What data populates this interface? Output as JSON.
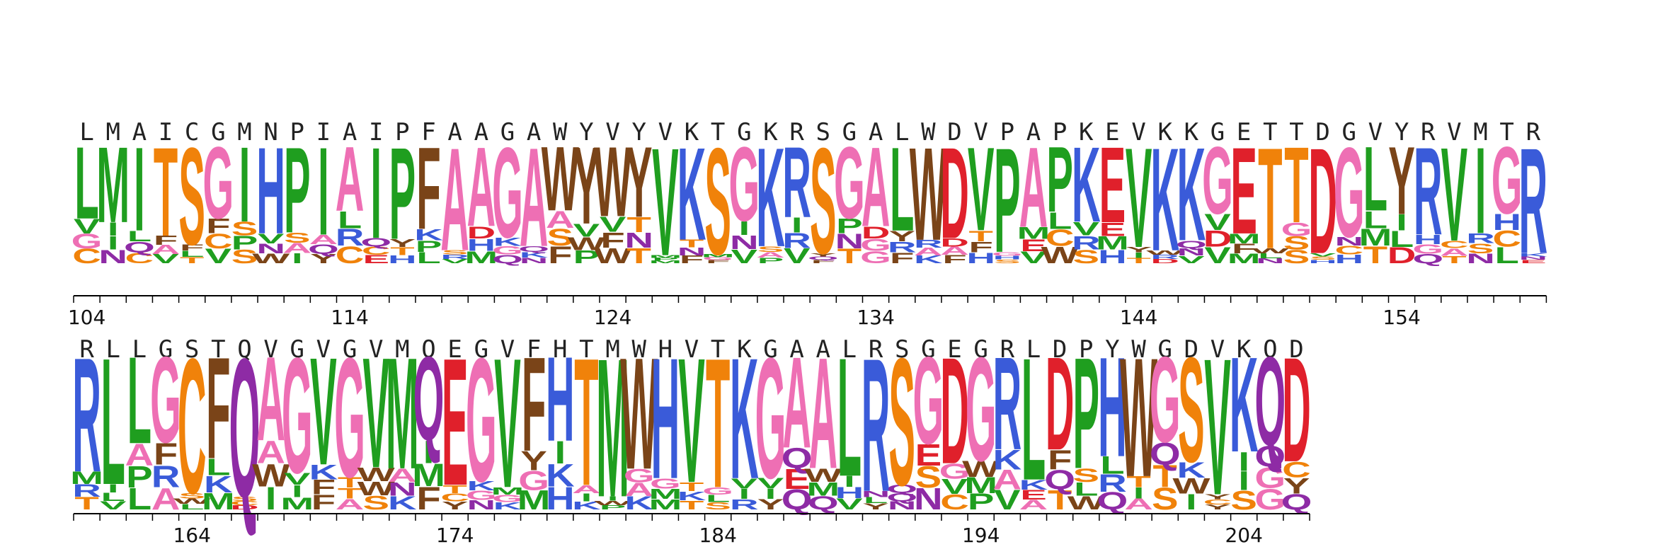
{
  "rows": [
    {
      "consensus": "LMAICGMNPIAIPFAAGAWYVYVKTGKRSGALWDVPAPKEVKKGETTDGVYRVMTR",
      "logo": "LMITSGIHPIAIPFAAGAWYWYVKSGKRSGALWDVPAPKEVKKGETTDGLYRVIGR",
      "start_position": 104,
      "tick_labels": [
        "104",
        "114",
        "124",
        "134",
        "144",
        "154"
      ]
    },
    {
      "consensus": "RLLGSTQVGVGVMQEGVFHTMWHVTKGAALRSGEGRLDPYWGDVKQD",
      "logo": "RLLGCFQAGVGVMQEGVFHTMWHVTKGAALRSGDGRLDPHWGSVKQD",
      "start_position": 160,
      "tick_labels": [
        "164",
        "174",
        "184",
        "194",
        "204"
      ]
    }
  ],
  "colors": {
    "hydrophobic": "#1f9e1f",
    "polar": "#f0820a",
    "basic": "#3a5bd9",
    "acidic": "#e0202b",
    "amide": "#8e2ba5",
    "glycine_serine": "#ee6fb4",
    "aromatic": "#7a4418",
    "histidine": "#3a5bd9",
    "proline": "#1f9e1f",
    "cysteine": "#f0820a"
  }
}
